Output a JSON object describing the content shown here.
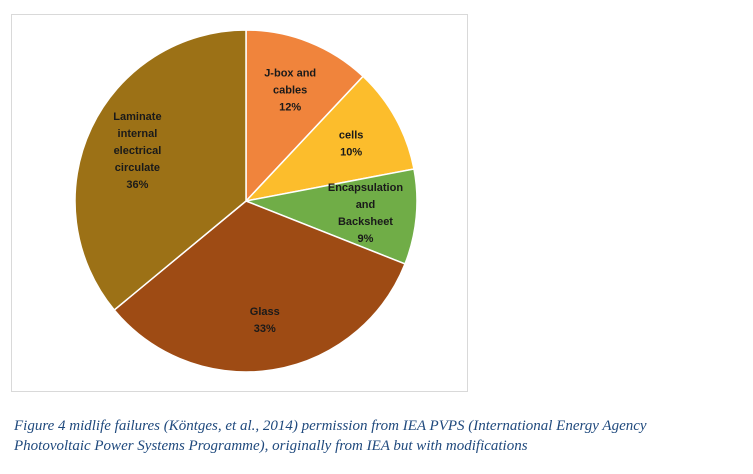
{
  "chart_data": {
    "type": "pie",
    "title": "",
    "slices": [
      {
        "label_lines": [
          "J-box and",
          "cables",
          "12%"
        ],
        "category": "J-box and cables",
        "value": 12,
        "color": "#f0843c"
      },
      {
        "label_lines": [
          "cells",
          "10%"
        ],
        "category": "cells",
        "value": 10,
        "color": "#fcbd2c"
      },
      {
        "label_lines": [
          "Encapsulation",
          "and",
          "Backsheet",
          "9%"
        ],
        "category": "Encapsulation and Backsheet",
        "value": 9,
        "color": "#70ad47"
      },
      {
        "label_lines": [
          "Glass",
          "33%"
        ],
        "category": "Glass",
        "value": 33,
        "color": "#9e4b14"
      },
      {
        "label_lines": [
          "Laminate",
          "internal",
          "electrical",
          "circulate",
          "36%"
        ],
        "category": "Laminate internal electrical circulate",
        "value": 36,
        "color": "#9c7116"
      }
    ],
    "start": "12 o'clock",
    "direction": "clockwise",
    "legend": "none"
  },
  "caption": {
    "line1": "Figure 4 midlife failures (Köntges, et al., 2014) permission from IEA PVPS (International Energy Agency",
    "line2": "Photovoltaic Power Systems Programme), originally from IEA but with modifications"
  }
}
